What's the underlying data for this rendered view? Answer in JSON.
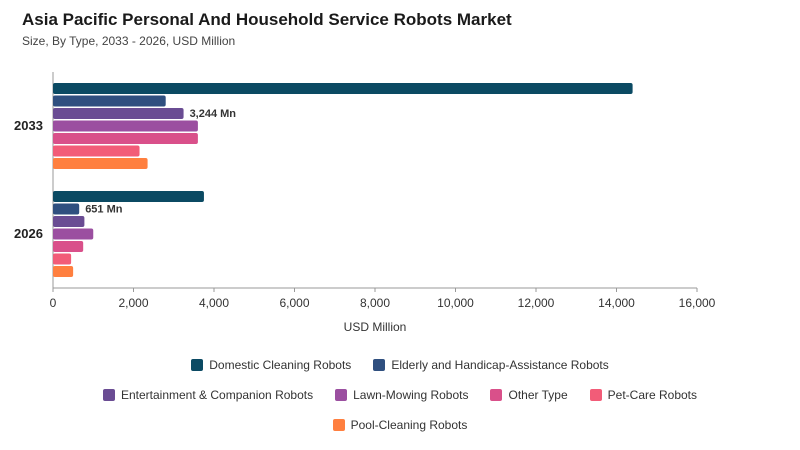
{
  "header": {
    "title": "Asia Pacific Personal And Household Service Robots Market",
    "subtitle": "Size, By Type, 2033 - 2026, USD Million"
  },
  "chart_data": {
    "type": "bar",
    "orientation": "horizontal",
    "categories": [
      "2033",
      "2026"
    ],
    "series": [
      {
        "name": "Domestic Cleaning Robots",
        "color": "#0b4a63",
        "values": [
          14400,
          3750
        ]
      },
      {
        "name": "Elderly and Handicap-Assistance Robots",
        "color": "#2f4f7f",
        "values": [
          2800,
          651
        ]
      },
      {
        "name": "Entertainment & Companion Robots",
        "color": "#6a4c93",
        "values": [
          3244,
          780
        ]
      },
      {
        "name": "Lawn-Mowing Robots",
        "color": "#9b4fa0",
        "values": [
          3600,
          1000
        ]
      },
      {
        "name": "Other Type",
        "color": "#d9508a",
        "values": [
          3600,
          750
        ]
      },
      {
        "name": "Pet-Care Robots",
        "color": "#f25c78",
        "values": [
          2150,
          450
        ]
      },
      {
        "name": "Pool-Cleaning Robots",
        "color": "#ff7f3f",
        "values": [
          2350,
          500
        ]
      }
    ],
    "data_labels": [
      {
        "category": "2033",
        "series": "Entertainment & Companion Robots",
        "text": "3,244 Mn"
      },
      {
        "category": "2026",
        "series": "Elderly and Handicap-Assistance Robots",
        "text": "651 Mn"
      }
    ],
    "xlabel": "USD Million",
    "ylabel": "",
    "xlim": [
      0,
      16000
    ],
    "xticks": [
      0,
      2000,
      4000,
      6000,
      8000,
      10000,
      12000,
      14000,
      16000
    ],
    "xtick_labels": [
      "0",
      "2,000",
      "4,000",
      "6,000",
      "8,000",
      "10,000",
      "12,000",
      "14,000",
      "16,000"
    ],
    "grid": false,
    "legend_position": "bottom"
  }
}
